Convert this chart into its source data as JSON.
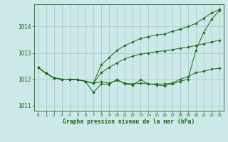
{
  "bg_color": "#cce8e8",
  "grid_color": "#aacccc",
  "line_color": "#1a6b1a",
  "marker_color": "#1a6b1a",
  "xlabel": "Graphe pression niveau de la mer (hPa)",
  "xlabel_color": "#1a6b1a",
  "tick_color": "#1a6b1a",
  "xlim": [
    -0.5,
    23.5
  ],
  "ylim": [
    1010.8,
    1014.85
  ],
  "yticks": [
    1011,
    1012,
    1013,
    1014
  ],
  "xticks": [
    0,
    1,
    2,
    3,
    4,
    5,
    6,
    7,
    8,
    9,
    10,
    11,
    12,
    13,
    14,
    15,
    16,
    17,
    18,
    19,
    20,
    21,
    22,
    23
  ],
  "lines": [
    [
      1012.45,
      1012.22,
      1012.05,
      1012.0,
      1012.0,
      1011.98,
      1011.92,
      1011.5,
      1011.82,
      1011.8,
      1012.0,
      1011.82,
      1011.78,
      1011.98,
      1011.82,
      1011.78,
      1011.75,
      1011.82,
      1011.92,
      1012.0,
      1013.1,
      1013.78,
      1014.28,
      1014.62
    ],
    [
      1012.45,
      1012.22,
      1012.05,
      1012.0,
      1012.0,
      1011.98,
      1011.92,
      1011.85,
      1011.9,
      1011.85,
      1011.95,
      1011.85,
      1011.82,
      1011.85,
      1011.82,
      1011.82,
      1011.82,
      1011.85,
      1012.0,
      1012.1,
      1012.25,
      1012.3,
      1012.38,
      1012.42
    ],
    [
      1012.45,
      1012.22,
      1012.05,
      1012.0,
      1012.0,
      1011.98,
      1011.92,
      1011.85,
      1012.25,
      1012.45,
      1012.62,
      1012.78,
      1012.88,
      1012.95,
      1013.0,
      1013.05,
      1013.08,
      1013.12,
      1013.18,
      1013.22,
      1013.28,
      1013.35,
      1013.42,
      1013.48
    ],
    [
      1012.45,
      1012.22,
      1012.05,
      1012.0,
      1012.0,
      1011.98,
      1011.92,
      1011.85,
      1012.55,
      1012.82,
      1013.1,
      1013.28,
      1013.42,
      1013.55,
      1013.62,
      1013.68,
      1013.72,
      1013.82,
      1013.9,
      1014.0,
      1014.12,
      1014.32,
      1014.52,
      1014.65
    ]
  ]
}
